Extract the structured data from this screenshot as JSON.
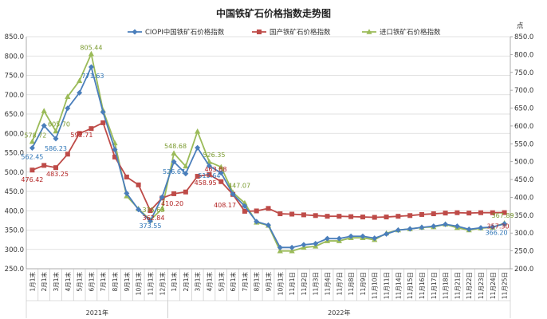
{
  "chart_data": {
    "type": "line",
    "title": "中国铁矿石价格指数走势图",
    "right_unit_label": "点",
    "left_ylim": [
      250,
      850
    ],
    "right_ylim": [
      200,
      850
    ],
    "left_ticks": [
      "250.0",
      "300.0",
      "350.0",
      "400.0",
      "450.0",
      "500.0",
      "550.0",
      "600.0",
      "650.0",
      "700.0",
      "750.0",
      "800.0",
      "850.0"
    ],
    "right_ticks": [
      "200.0",
      "250.0",
      "300.0",
      "350.0",
      "400.0",
      "450.0",
      "500.0",
      "550.0",
      "600.0",
      "650.0",
      "700.0",
      "750.0",
      "800.0",
      "850.0"
    ],
    "grid": true,
    "legend_position": "top",
    "categories": [
      "1月1末",
      "2月1末",
      "3月1末",
      "4月1末",
      "5月1末",
      "6月1末",
      "7月1末",
      "8月1末",
      "9月1末",
      "10月1末",
      "11月1末",
      "12月1末",
      "1月1末",
      "2月1末",
      "3月1末",
      "4月1末",
      "5月1末",
      "6月1末",
      "7月1末",
      "8月1末",
      "9月1末",
      "10月1末",
      "11月1日",
      "11月2日",
      "11月3日",
      "11月4日",
      "11月7日",
      "11月8日",
      "11月9日",
      "11月10日",
      "11月11日",
      "11月14日",
      "11月15日",
      "11月16日",
      "11月17日",
      "11月18日",
      "11月21日",
      "11月22日",
      "11月23日",
      "11月24日",
      "11月25日"
    ],
    "year_groups": [
      {
        "label": "2021年",
        "start": 0,
        "end": 11
      },
      {
        "label": "2022年",
        "start": 12,
        "end": 40
      }
    ],
    "series": [
      {
        "name": "CIOPI中国铁矿石价格指数",
        "color": "#4a7ebb",
        "marker": "diamond",
        "axis": "left",
        "values": [
          562.45,
          620,
          586.23,
          665,
          705,
          771.63,
          655,
          558,
          445,
          403,
          373.55,
          435,
          526.67,
          496,
          563,
          515.64,
          498,
          443,
          412,
          372,
          363,
          305,
          305,
          312,
          315,
          328,
          328,
          334,
          334,
          329,
          340,
          350,
          353,
          357,
          360,
          365,
          360,
          352,
          356,
          358,
          366.2
        ]
      },
      {
        "name": "国产铁矿石价格指数",
        "color": "#be4b48",
        "marker": "square",
        "axis": "right",
        "values": [
          476.42,
          489.5,
          483.25,
          521,
          579,
          592.71,
          609,
          513,
          457,
          435,
          362.84,
          398,
          410.2,
          415,
          458.95,
          463.88,
          444,
          408.17,
          361,
          362,
          369,
          354,
          353,
          351,
          349,
          347,
          347,
          346,
          345,
          344,
          345,
          347,
          349,
          352,
          354,
          356,
          357,
          356,
          357,
          357,
          357.3
        ]
      },
      {
        "name": "进口铁矿石价格指数",
        "color": "#9bbb59",
        "marker": "triangle",
        "axis": "left",
        "values": [
          578.72,
          658,
          605.7,
          695,
          736,
          805.44,
          660,
          575,
          438,
          405,
          375.63,
          405,
          548.68,
          515,
          605,
          526.35,
          513,
          447.07,
          420,
          370,
          362,
          296,
          296,
          305,
          308,
          322,
          322,
          330,
          330,
          325,
          342,
          350,
          353,
          357,
          358,
          365,
          356,
          350,
          355,
          357,
          367.89
        ]
      }
    ],
    "data_labels": [
      {
        "series": 0,
        "index": 0,
        "text": "562.45"
      },
      {
        "series": 0,
        "index": 2,
        "text": "586.23"
      },
      {
        "series": 0,
        "index": 5,
        "text": "771.63"
      },
      {
        "series": 0,
        "index": 10,
        "text": "373.55"
      },
      {
        "series": 0,
        "index": 12,
        "text": "526.67"
      },
      {
        "series": 0,
        "index": 15,
        "text": "515.64"
      },
      {
        "series": 0,
        "index": 40,
        "text": "366.20"
      },
      {
        "series": 1,
        "index": 0,
        "text": "476.42"
      },
      {
        "series": 1,
        "index": 2,
        "text": "483.25"
      },
      {
        "series": 1,
        "index": 5,
        "text": "592.71"
      },
      {
        "series": 1,
        "index": 10,
        "text": "362.84"
      },
      {
        "series": 1,
        "index": 12,
        "text": "410.20"
      },
      {
        "series": 1,
        "index": 14,
        "text": "458.95"
      },
      {
        "series": 1,
        "index": 15,
        "text": "463.88"
      },
      {
        "series": 1,
        "index": 17,
        "text": "408.17"
      },
      {
        "series": 1,
        "index": 40,
        "text": "357.30"
      },
      {
        "series": 2,
        "index": 0,
        "text": "578.72"
      },
      {
        "series": 2,
        "index": 2,
        "text": "605.70"
      },
      {
        "series": 2,
        "index": 5,
        "text": "805.44"
      },
      {
        "series": 2,
        "index": 10,
        "text": "375.63"
      },
      {
        "series": 2,
        "index": 12,
        "text": "548.68"
      },
      {
        "series": 2,
        "index": 15,
        "text": "526.35"
      },
      {
        "series": 2,
        "index": 17,
        "text": "447.07"
      },
      {
        "series": 2,
        "index": 40,
        "text": "367.89"
      }
    ]
  }
}
